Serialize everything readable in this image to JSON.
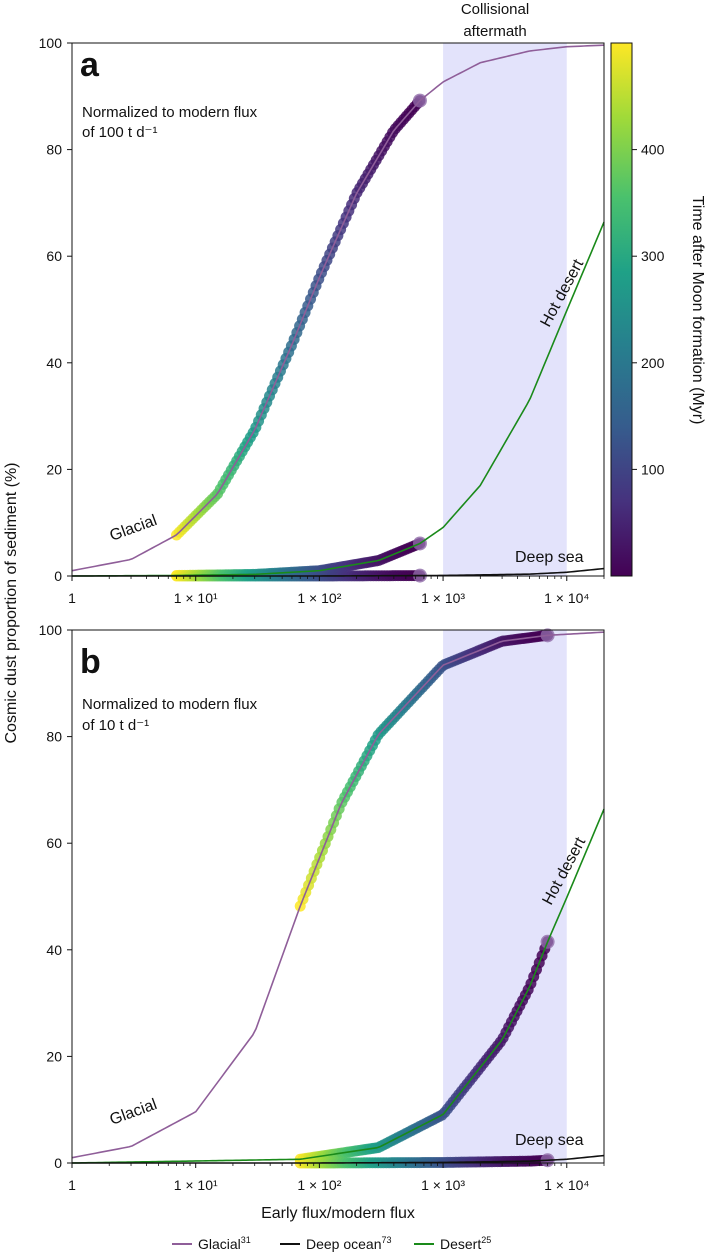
{
  "chart_data": [
    {
      "panel": "a",
      "type": "line",
      "xscale": "log",
      "xlim": [
        1,
        20000
      ],
      "ylim": [
        0,
        100
      ],
      "xticks": [
        "1",
        "1 × 10¹",
        "1 × 10²",
        "1 × 10³",
        "1 × 10⁴"
      ],
      "yticks": [
        "0",
        "20",
        "40",
        "60",
        "80",
        "100"
      ],
      "annotations": {
        "norm_line1": "Normalized to modern flux",
        "norm_line2": "of 100 t d⁻¹",
        "glacial": "Glacial",
        "hot_desert": "Hot desert",
        "deep_sea": "Deep sea",
        "aftermath_line1": "Collisional",
        "aftermath_line2": "aftermath"
      },
      "shaded_region": {
        "x": [
          1000,
          10000
        ],
        "color": "#e3e3fb"
      },
      "series": [
        {
          "name": "Glacial",
          "color": "#8f5e99",
          "x": [
            1,
            3,
            7,
            15,
            30,
            60,
            100,
            200,
            400,
            650,
            1000,
            2000,
            5000,
            10000,
            20000
          ],
          "y": [
            1.0,
            3.1,
            7.7,
            15.4,
            27.4,
            43.4,
            56.0,
            71.8,
            83.6,
            89.2,
            92.7,
            96.3,
            98.5,
            99.3,
            99.6
          ]
        },
        {
          "name": "Desert",
          "color": "#1a8a1a",
          "x": [
            1,
            7,
            30,
            100,
            300,
            650,
            1000,
            2000,
            5000,
            10000,
            20000
          ],
          "y": [
            0.0,
            0.1,
            0.3,
            1.0,
            2.9,
            6.1,
            9.1,
            17.0,
            33.0,
            49.8,
            66.4
          ]
        },
        {
          "name": "Deep ocean",
          "color": "#111111",
          "x": [
            1,
            100,
            1000,
            5000,
            10000,
            20000
          ],
          "y": [
            0.0,
            0.0,
            0.1,
            0.35,
            0.7,
            1.4
          ]
        }
      ],
      "time_bands": [
        {
          "x": [
            7,
            650
          ],
          "y_series": "Glacial"
        },
        {
          "x": [
            7,
            650
          ],
          "y_series": "Desert"
        },
        {
          "x": [
            7,
            650
          ],
          "y_series": "Deep ocean"
        }
      ]
    },
    {
      "panel": "b",
      "type": "line",
      "xscale": "log",
      "xlim": [
        1,
        20000
      ],
      "ylim": [
        0,
        100
      ],
      "xticks": [
        "1",
        "1 × 10¹",
        "1 × 10²",
        "1 × 10³",
        "1 × 10⁴"
      ],
      "yticks": [
        "0",
        "20",
        "40",
        "60",
        "80",
        "100"
      ],
      "annotations": {
        "norm_line1": "Normalized to modern flux",
        "norm_line2": "of 10 t d⁻¹",
        "glacial": "Glacial",
        "hot_desert": "Hot desert",
        "deep_sea": "Deep sea"
      },
      "shaded_region": {
        "x": [
          1000,
          10000
        ],
        "color": "#e3e3fb"
      },
      "series": [
        {
          "name": "Glacial",
          "color": "#8f5e99",
          "x": [
            1,
            3,
            10,
            30,
            70,
            150,
            300,
            1000,
            3000,
            7000,
            20000
          ],
          "y": [
            1.0,
            3.1,
            9.6,
            24.5,
            48.2,
            67.4,
            80.4,
            93.4,
            97.9,
            99.0,
            99.6
          ]
        },
        {
          "name": "Desert",
          "color": "#1a8a1a",
          "x": [
            1,
            70,
            300,
            1000,
            3000,
            5000,
            7000,
            10000,
            20000
          ],
          "y": [
            0.0,
            0.7,
            2.9,
            9.1,
            23.1,
            33.0,
            41.5,
            49.8,
            66.4
          ]
        },
        {
          "name": "Deep ocean",
          "color": "#111111",
          "x": [
            1,
            100,
            1000,
            5000,
            10000,
            20000
          ],
          "y": [
            0.0,
            0.0,
            0.1,
            0.35,
            0.7,
            1.4
          ]
        }
      ],
      "time_bands": [
        {
          "x": [
            70,
            7000
          ],
          "y_series": "Glacial"
        },
        {
          "x": [
            70,
            7000
          ],
          "y_series": "Desert"
        },
        {
          "x": [
            70,
            7000
          ],
          "y_series": "Deep ocean"
        }
      ]
    }
  ],
  "figure": {
    "xlabel": "Early flux/modern flux",
    "ylabel": "Cosmic dust proportion of sediment (%)",
    "colorbar": {
      "label": "Time after Moon formation (Myr)",
      "ticks": [
        100,
        200,
        300,
        400
      ],
      "tick_labels": [
        "100",
        "200",
        "300",
        "400"
      ],
      "range": [
        0,
        500
      ],
      "colormap": [
        "#440154",
        "#46327e",
        "#365c8d",
        "#277f8e",
        "#1fa187",
        "#4ac16d",
        "#a0da39",
        "#fde725"
      ]
    },
    "legend": [
      {
        "label": "Glacial",
        "sup": "31",
        "color": "#8f5e99"
      },
      {
        "label": "Deep ocean",
        "sup": "73",
        "color": "#111111"
      },
      {
        "label": "Desert",
        "sup": "25",
        "color": "#1a8a1a"
      }
    ]
  }
}
